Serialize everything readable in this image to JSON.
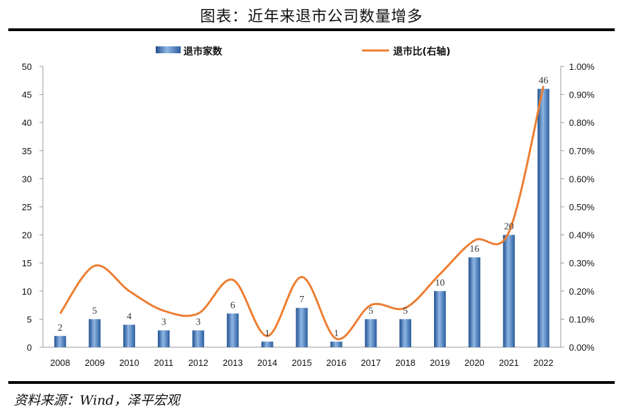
{
  "title": "图表：近年来退市公司数量增多",
  "source": "资料来源：Wind，泽平宏观",
  "colors": {
    "bar": "#3b73b9",
    "line": "#ed7d31"
  },
  "chart_data": {
    "type": "bar",
    "categories": [
      "2008",
      "2009",
      "2010",
      "2011",
      "2012",
      "2013",
      "2014",
      "2015",
      "2016",
      "2017",
      "2018",
      "2019",
      "2020",
      "2021",
      "2022"
    ],
    "series": [
      {
        "name": "退市家数",
        "type": "bar",
        "axis": "left",
        "values": [
          2,
          5,
          4,
          3,
          3,
          6,
          1,
          7,
          1,
          5,
          5,
          10,
          16,
          20,
          46
        ]
      },
      {
        "name": "退市比(右轴)",
        "type": "line",
        "axis": "right",
        "values": [
          0.12,
          0.29,
          0.2,
          0.13,
          0.12,
          0.24,
          0.04,
          0.25,
          0.03,
          0.15,
          0.14,
          0.26,
          0.38,
          0.41,
          0.93
        ]
      }
    ],
    "data_labels": [
      "2",
      "5",
      "4",
      "3",
      "3",
      "6",
      "1",
      "7",
      "1",
      "5",
      "5",
      "10",
      "16",
      "20",
      "46"
    ],
    "ylim": [
      0,
      50
    ],
    "yticks": [
      "0",
      "5",
      "10",
      "15",
      "20",
      "25",
      "30",
      "35",
      "40",
      "45",
      "50"
    ],
    "ylim_right": [
      0,
      1.0
    ],
    "yticks_right": [
      "0.00%",
      "0.10%",
      "0.20%",
      "0.30%",
      "0.40%",
      "0.50%",
      "0.60%",
      "0.70%",
      "0.80%",
      "0.90%",
      "1.00%"
    ],
    "legend_position": "top",
    "grid": false
  }
}
